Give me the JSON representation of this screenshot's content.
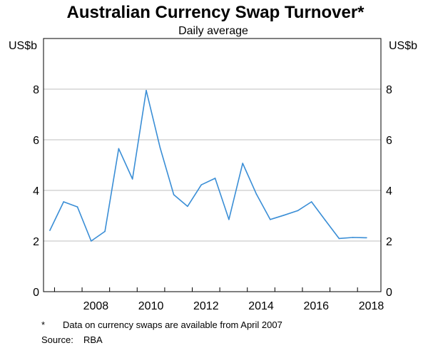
{
  "chart_data": {
    "type": "line",
    "title": "Australian Currency Swap Turnover*",
    "subtitle": "Daily average",
    "ylabel_left": "US$b",
    "ylabel_right": "US$b",
    "xlim": [
      2006.6,
      2018.85
    ],
    "ylim": [
      0,
      10
    ],
    "x_ticks": [
      {
        "value": 2008,
        "label": "2008"
      },
      {
        "value": 2010,
        "label": "2010"
      },
      {
        "value": 2012,
        "label": "2012"
      },
      {
        "value": 2014,
        "label": "2014"
      },
      {
        "value": 2016,
        "label": "2016"
      },
      {
        "value": 2018,
        "label": "2018"
      }
    ],
    "y_ticks": [
      {
        "value": 0,
        "label": "0"
      },
      {
        "value": 2,
        "label": "2"
      },
      {
        "value": 4,
        "label": "4"
      },
      {
        "value": 6,
        "label": "6"
      },
      {
        "value": 8,
        "label": "8"
      }
    ],
    "grid": true,
    "series": [
      {
        "color": "#3a8ed6",
        "x": [
          2006.83,
          2007.33,
          2007.83,
          2008.33,
          2008.83,
          2009.33,
          2009.83,
          2010.33,
          2010.83,
          2011.33,
          2011.83,
          2012.33,
          2012.83,
          2013.33,
          2013.83,
          2014.33,
          2014.83,
          2015.33,
          2015.83,
          2016.33,
          2016.83,
          2017.33,
          2017.83,
          2018.33
        ],
        "y": [
          2.42,
          3.55,
          3.35,
          2.0,
          2.38,
          5.65,
          4.45,
          7.95,
          5.7,
          3.83,
          3.37,
          4.22,
          4.48,
          2.85,
          5.07,
          3.85,
          2.85,
          3.02,
          3.2,
          3.55,
          2.82,
          2.1,
          2.14,
          2.13
        ]
      }
    ]
  },
  "footnotes": {
    "note_marker": "*",
    "note_text": "Data on currency swaps are available from April 2007",
    "source_label": "Source:",
    "source_text": "RBA"
  }
}
